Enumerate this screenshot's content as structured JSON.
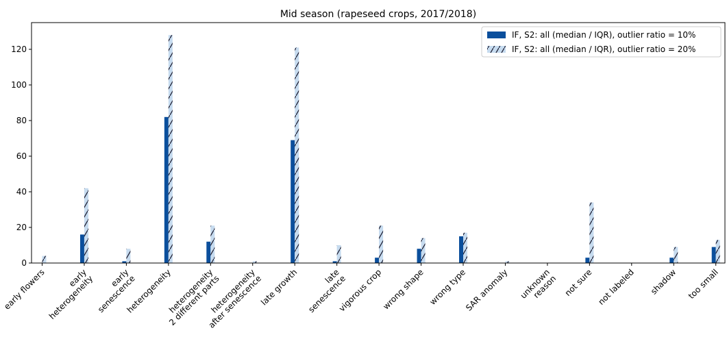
{
  "chart_data": {
    "type": "bar",
    "title": "Mid season (rapeseed crops, 2017/2018)",
    "categories": [
      "early flowers",
      "early\nheterogeneity",
      "early\nsenescence",
      "heterogeneity",
      "heterogeneity\n2 different parts",
      "heterogeneity\nafter senescence",
      "late growth",
      "late\nsenescence",
      "vigorous crop",
      "wrong shape",
      "wrong type",
      "SAR anomaly",
      "unknown\nreason",
      "not sure",
      "not labeled",
      "shadow",
      "too small"
    ],
    "series": [
      {
        "name": "IF, S2: all (median / IQR), outlier ratio = 10%",
        "color": "#0b4f9c",
        "hatch": false,
        "values": [
          0,
          16,
          1,
          82,
          12,
          0,
          69,
          1,
          3,
          8,
          15,
          0,
          0,
          3,
          0,
          3,
          9
        ]
      },
      {
        "name": "IF, S2: all (median / IQR), outlier ratio = 20%",
        "color": "#c6dbef",
        "hatch": true,
        "values": [
          4,
          42,
          8,
          128,
          21,
          1,
          121,
          10,
          21,
          14,
          17,
          1,
          0,
          34,
          0,
          9,
          13
        ]
      }
    ],
    "ylim": [
      0,
      135
    ],
    "yticks": [
      0,
      20,
      40,
      60,
      80,
      100,
      120
    ],
    "grid": false,
    "legend": "upper right"
  }
}
